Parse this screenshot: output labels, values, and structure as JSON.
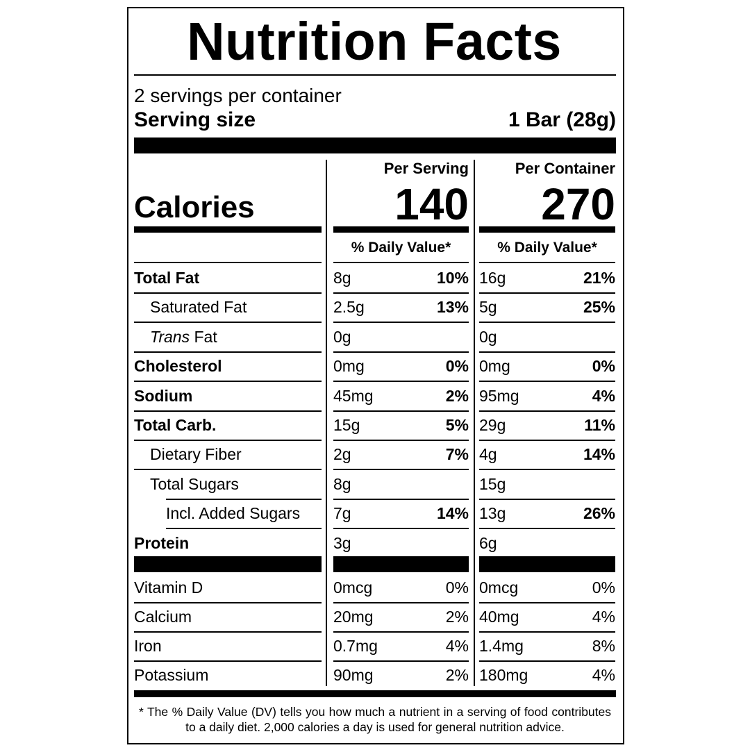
{
  "title": "Nutrition Facts",
  "servings": "2 servings per container",
  "serving_size": {
    "label": "Serving size",
    "value": "1 Bar (28g)"
  },
  "columns": [
    "Per Serving",
    "Per Container"
  ],
  "calories": {
    "label": "Calories",
    "per_serving": "140",
    "per_container": "270"
  },
  "dv_header": "% Daily Value*",
  "nutrients": [
    {
      "label": "Total Fat",
      "per_serving": {
        "amount": "8g",
        "dv": "10%"
      },
      "per_container": {
        "amount": "16g",
        "dv": "21%"
      },
      "sub": [
        {
          "label": "Saturated Fat",
          "per_serving": {
            "amount": "2.5g",
            "dv": "13%"
          },
          "per_container": {
            "amount": "5g",
            "dv": "25%"
          }
        },
        {
          "label_italic": "Trans",
          "label": "Fat",
          "per_serving": {
            "amount": "0g"
          },
          "per_container": {
            "amount": "0g"
          }
        }
      ]
    },
    {
      "label": "Cholesterol",
      "per_serving": {
        "amount": "0mg",
        "dv": "0%"
      },
      "per_container": {
        "amount": "0mg",
        "dv": "0%"
      }
    },
    {
      "label": "Sodium",
      "per_serving": {
        "amount": "45mg",
        "dv": "2%"
      },
      "per_container": {
        "amount": "95mg",
        "dv": "4%"
      }
    },
    {
      "label": "Total Carb.",
      "per_serving": {
        "amount": "15g",
        "dv": "5%"
      },
      "per_container": {
        "amount": "29g",
        "dv": "11%"
      },
      "sub": [
        {
          "label": "Dietary Fiber",
          "per_serving": {
            "amount": "2g",
            "dv": "7%"
          },
          "per_container": {
            "amount": "4g",
            "dv": "14%"
          }
        },
        {
          "label": "Total Sugars",
          "per_serving": {
            "amount": "8g"
          },
          "per_container": {
            "amount": "15g"
          },
          "sub": [
            {
              "label": "Incl. Added Sugars",
              "per_serving": {
                "amount": "7g",
                "dv": "14%"
              },
              "per_container": {
                "amount": "13g",
                "dv": "26%"
              }
            }
          ]
        }
      ]
    },
    {
      "label": "Protein",
      "per_serving": {
        "amount": "3g"
      },
      "per_container": {
        "amount": "6g"
      }
    }
  ],
  "vitamins": [
    {
      "label": "Vitamin D",
      "per_serving": {
        "amount": "0mcg",
        "dv": "0%"
      },
      "per_container": {
        "amount": "0mcg",
        "dv": "0%"
      }
    },
    {
      "label": "Calcium",
      "per_serving": {
        "amount": "20mg",
        "dv": "2%"
      },
      "per_container": {
        "amount": "40mg",
        "dv": "4%"
      }
    },
    {
      "label": "Iron",
      "per_serving": {
        "amount": "0.7mg",
        "dv": "4%"
      },
      "per_container": {
        "amount": "1.4mg",
        "dv": "8%"
      }
    },
    {
      "label": "Potassium",
      "per_serving": {
        "amount": "90mg",
        "dv": "2%"
      },
      "per_container": {
        "amount": "180mg",
        "dv": "4%"
      }
    }
  ],
  "footnote": "* The % Daily Value (DV) tells you how much a nutrient in a serving of food contributes to a daily diet. 2,000 calories a day is used for general nutrition advice."
}
